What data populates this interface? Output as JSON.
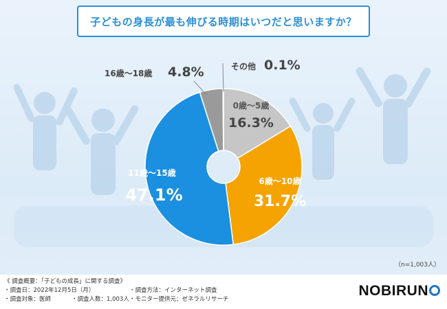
{
  "title": "子どもの身長が最も伸びる時期はいつだと思いますか？",
  "chart_data": {
    "type": "pie",
    "style": "donut",
    "title": "子どもの身長が最も伸びる時期はいつだと思いますか？",
    "slices": [
      {
        "label": "0歳〜5歳",
        "value": 16.3,
        "value_text": "16.3%",
        "color": "#c6c6c6"
      },
      {
        "label": "6歳〜10歳",
        "value": 31.7,
        "value_text": "31.7%",
        "color": "#f5a300"
      },
      {
        "label": "11歳〜15歳",
        "value": 47.1,
        "value_text": "47.1%",
        "color": "#1b8fe0"
      },
      {
        "label": "16歳〜18歳",
        "value": 4.8,
        "value_text": "4.8%",
        "color": "#9a9a9a"
      },
      {
        "label": "その他",
        "value": 0.1,
        "value_text": "0.1%",
        "color": "#5e5e5e"
      }
    ]
  },
  "sample_note": "（n=1,003人）",
  "survey": {
    "heading": "《 調査概要：「子どもの成長」に関する調査》",
    "date": "・調査日：2022年12月5日（月）",
    "method": "・調査方法：インターネット調査",
    "target": "・調査対象：医師",
    "count": "・調査人数：1,003人",
    "provider": "・モニター提供元：ゼネラルリサーチ"
  },
  "logo": {
    "text_a": "NOBIRU",
    "text_b": "N"
  }
}
